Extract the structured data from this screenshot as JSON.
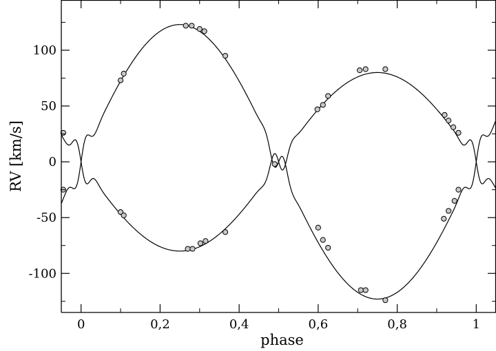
{
  "chart_data": {
    "type": "scatter",
    "xlabel": "phase",
    "ylabel": "RV [km/s]",
    "xlim": [
      -0.05,
      1.05
    ],
    "ylim": [
      -135,
      145
    ],
    "x_ticks": [
      0,
      0.2,
      0.4,
      0.6,
      0.8,
      1
    ],
    "x_tick_labels": [
      "0",
      "0,2",
      "0,4",
      "0,6",
      "0,8",
      "1"
    ],
    "y_ticks": [
      -100,
      -50,
      0,
      50,
      100
    ],
    "y_tick_labels": [
      "-100",
      "-50",
      "0",
      "50",
      "100"
    ],
    "grid": false,
    "colors": {
      "marker_fill": "#c8c8c8",
      "line": "#000000"
    },
    "series": [
      {
        "points": [
          [
            -0.045,
            26
          ],
          [
            0.1,
            73
          ],
          [
            0.108,
            79
          ],
          [
            0.265,
            122
          ],
          [
            0.28,
            122
          ],
          [
            0.3,
            119
          ],
          [
            0.312,
            117
          ],
          [
            0.365,
            95
          ],
          [
            0.49,
            -2
          ],
          [
            0.6,
            -59
          ],
          [
            0.612,
            -70
          ],
          [
            0.625,
            -77
          ],
          [
            0.708,
            -115
          ],
          [
            0.72,
            -115
          ],
          [
            0.77,
            -124
          ],
          [
            0.918,
            -51
          ],
          [
            0.93,
            -44
          ],
          [
            0.945,
            -35
          ],
          [
            0.955,
            -25
          ]
        ]
      },
      {
        "points": [
          [
            -0.045,
            -25
          ],
          [
            0.1,
            -45
          ],
          [
            0.108,
            -48
          ],
          [
            0.27,
            -78
          ],
          [
            0.282,
            -78
          ],
          [
            0.302,
            -73
          ],
          [
            0.315,
            -71
          ],
          [
            0.365,
            -63
          ],
          [
            0.598,
            47
          ],
          [
            0.612,
            51
          ],
          [
            0.625,
            59
          ],
          [
            0.705,
            82
          ],
          [
            0.72,
            83
          ],
          [
            0.77,
            83
          ],
          [
            0.92,
            42
          ],
          [
            0.93,
            37
          ],
          [
            0.942,
            31
          ],
          [
            0.955,
            26
          ]
        ]
      }
    ],
    "model_curves": [
      {
        "gamma": 0,
        "amplitude": 123,
        "sign": 1
      },
      {
        "gamma": 0,
        "amplitude": 80,
        "sign": -1
      }
    ]
  }
}
